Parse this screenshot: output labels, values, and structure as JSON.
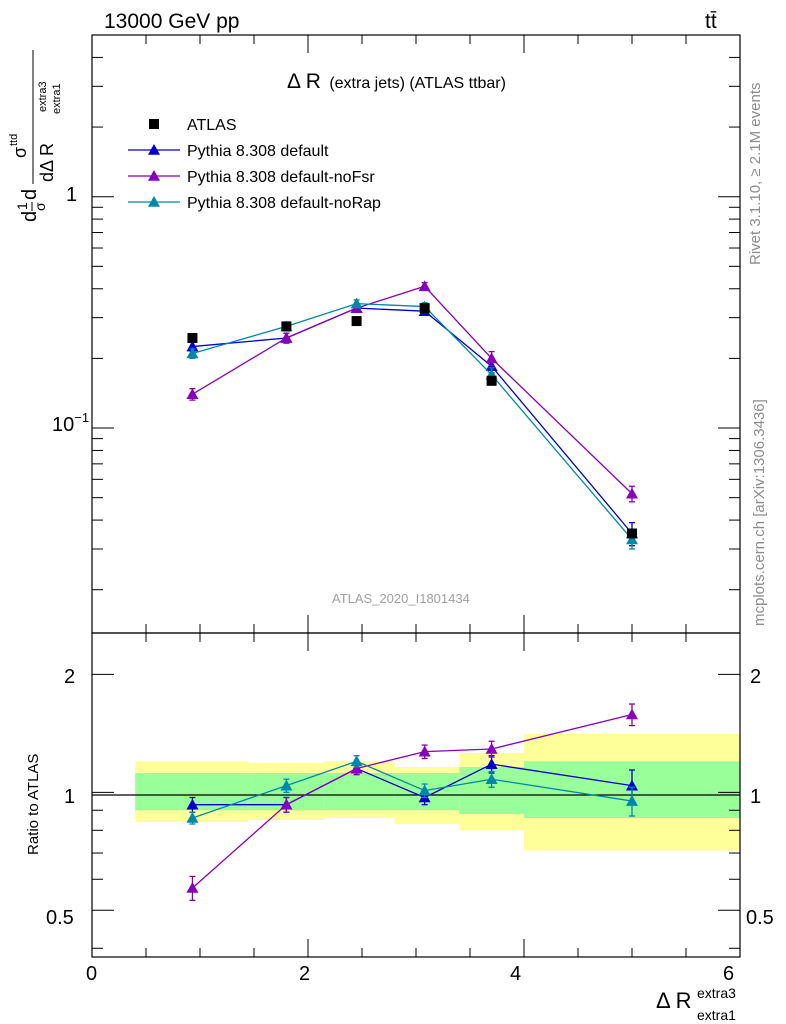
{
  "header": {
    "energy_label": "13000 GeV pp",
    "process_label": "tt̄"
  },
  "plot_title": {
    "main": "Δ R",
    "rest": "(extra jets) (ATLAS ttbar)"
  },
  "side_labels": {
    "rivet": "Rivet 3.1.10, ≥ 2.1M events",
    "mcplots": "mcplots.cern.ch [arXiv:1306.3436]"
  },
  "watermark": "ATLAS_2020_I1801434",
  "y_axis_label": {
    "d1": "d",
    "frac_num": "1",
    "frac_den": "σ",
    "d2": "d",
    "sigma": "σ",
    "sigma_sup": "ttd",
    "den": "dΔ R",
    "den_sub": "extra1",
    "den_sup": "extra3"
  },
  "ratio_y_label": "Ratio to ATLAS",
  "x_axis_label": {
    "main": "Δ R",
    "sup": "extra3",
    "sub": "extra1"
  },
  "colors": {
    "atlas": "#000000",
    "default": "#0000cc",
    "noFsr": "#8800bb",
    "noRap": "#0088aa",
    "band_inner": "#99ff99",
    "band_outer": "#ffff99"
  },
  "chart_data": [
    {
      "type": "scatter",
      "panel": "main",
      "y_scale": "log",
      "ylim": [
        0.013,
        5.0
      ],
      "xlim": [
        0,
        6
      ],
      "y_tick_labels": [
        "10⁻¹",
        "1"
      ],
      "legend": "top-left",
      "series": [
        {
          "name": "ATLAS",
          "marker": "square",
          "color": "#000000",
          "x": [
            0.93,
            1.8,
            2.45,
            3.08,
            3.7,
            5.0
          ],
          "y": [
            0.245,
            0.275,
            0.29,
            0.33,
            0.16,
            0.035
          ],
          "err": [
            0.0,
            0.0,
            0.0,
            0.0,
            0.0,
            0.0
          ]
        },
        {
          "name": "Pythia 8.308 default",
          "marker": "triangle",
          "color": "#0000cc",
          "x": [
            0.93,
            1.8,
            2.45,
            3.08,
            3.7,
            5.0
          ],
          "y": [
            0.225,
            0.245,
            0.33,
            0.32,
            0.185,
            0.035
          ],
          "err": [
            0.01,
            0.012,
            0.013,
            0.013,
            0.012,
            0.004
          ]
        },
        {
          "name": "Pythia 8.308 default-noFsr",
          "marker": "triangle",
          "color": "#8800bb",
          "x": [
            0.93,
            1.8,
            2.45,
            3.08,
            3.7,
            5.0
          ],
          "y": [
            0.14,
            0.245,
            0.33,
            0.41,
            0.2,
            0.052
          ],
          "err": [
            0.008,
            0.012,
            0.013,
            0.015,
            0.014,
            0.004
          ]
        },
        {
          "name": "Pythia 8.308 default-noRap",
          "marker": "triangle",
          "color": "#0088aa",
          "x": [
            0.93,
            1.8,
            2.45,
            3.08,
            3.7,
            5.0
          ],
          "y": [
            0.21,
            0.275,
            0.345,
            0.335,
            0.17,
            0.033
          ],
          "err": [
            0.01,
            0.012,
            0.013,
            0.013,
            0.012,
            0.003
          ]
        }
      ]
    },
    {
      "type": "scatter",
      "panel": "ratio",
      "ylabel": "Ratio to ATLAS",
      "y_scale": "log",
      "ylim": [
        0.38,
        2.55
      ],
      "xlim": [
        0,
        6
      ],
      "x_ticks": [
        0,
        2,
        4,
        6
      ],
      "y_ticks": [
        0.5,
        1,
        2
      ],
      "reference_line": 1,
      "bands": [
        {
          "x0": 0.4,
          "x1": 1.45,
          "inner": [
            0.9,
            1.12
          ],
          "outer": [
            0.84,
            1.2
          ]
        },
        {
          "x0": 1.45,
          "x1": 2.15,
          "inner": [
            0.9,
            1.12
          ],
          "outer": [
            0.85,
            1.19
          ]
        },
        {
          "x0": 2.15,
          "x1": 2.8,
          "inner": [
            0.9,
            1.12
          ],
          "outer": [
            0.86,
            1.2
          ]
        },
        {
          "x0": 2.8,
          "x1": 3.4,
          "inner": [
            0.9,
            1.12
          ],
          "outer": [
            0.83,
            1.16
          ]
        },
        {
          "x0": 3.4,
          "x1": 4.0,
          "inner": [
            0.88,
            1.16
          ],
          "outer": [
            0.8,
            1.26
          ]
        },
        {
          "x0": 4.0,
          "x1": 6.0,
          "inner": [
            0.86,
            1.2
          ],
          "outer": [
            0.71,
            1.41
          ]
        }
      ],
      "series": [
        {
          "name": "Pythia 8.308 default",
          "color": "#0000cc",
          "x": [
            0.93,
            1.8,
            2.45,
            3.08,
            3.7,
            5.0
          ],
          "y": [
            0.93,
            0.93,
            1.15,
            0.97,
            1.18,
            1.04
          ],
          "err": [
            0.04,
            0.04,
            0.04,
            0.04,
            0.06,
            0.1
          ]
        },
        {
          "name": "Pythia 8.308 default-noFsr",
          "color": "#8800bb",
          "x": [
            0.93,
            1.8,
            2.45,
            3.08,
            3.7,
            5.0
          ],
          "y": [
            0.57,
            0.93,
            1.15,
            1.27,
            1.29,
            1.58
          ],
          "err": [
            0.04,
            0.04,
            0.04,
            0.05,
            0.06,
            0.1
          ]
        },
        {
          "name": "Pythia 8.308 default-noRap",
          "color": "#0088aa",
          "x": [
            0.93,
            1.8,
            2.45,
            3.08,
            3.7,
            5.0
          ],
          "y": [
            0.86,
            1.04,
            1.2,
            1.01,
            1.08,
            0.95
          ],
          "err": [
            0.03,
            0.04,
            0.04,
            0.04,
            0.05,
            0.08
          ]
        }
      ]
    }
  ]
}
